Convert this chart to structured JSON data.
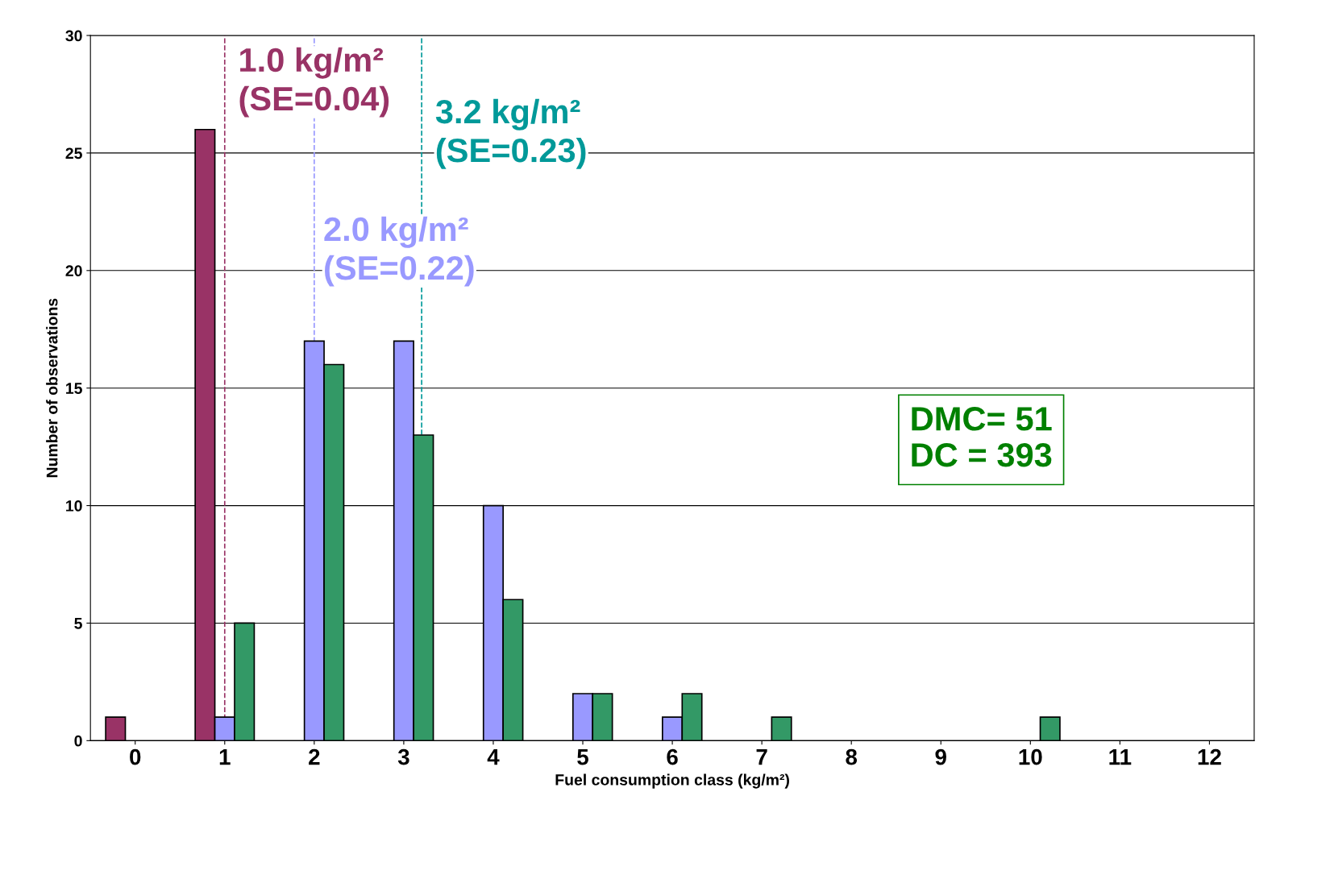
{
  "chart_data": {
    "type": "bar",
    "xlabel": "Fuel consumption class (kg/m²)",
    "ylabel": "Number of observations",
    "xlim": [
      -0.5,
      12.5
    ],
    "xticks": [
      0,
      1,
      2,
      3,
      4,
      5,
      6,
      7,
      8,
      9,
      10,
      11,
      12
    ],
    "series": [
      {
        "color": "#993366",
        "x": [
          0,
          1
        ],
        "values": [
          1,
          26
        ]
      },
      {
        "color": "#9999ff",
        "x": [
          1,
          2,
          3,
          4,
          5,
          6
        ],
        "values": [
          1,
          17,
          17,
          10,
          2,
          1
        ]
      },
      {
        "color": "#339966",
        "x": [
          1,
          2,
          3,
          4,
          5,
          6,
          7,
          10
        ],
        "values": [
          5,
          16,
          13,
          6,
          2,
          2,
          1,
          1
        ]
      }
    ],
    "ylim": [
      0,
      30
    ],
    "yticks": [
      0,
      5,
      10,
      15,
      20,
      25,
      30
    ],
    "grid": "y",
    "ref_lines": [
      {
        "axis": "x",
        "value": 1.0,
        "label": "1.0 kg/m²\n(SE=0.04)",
        "color": "#993366",
        "line_style": "dashed"
      },
      {
        "axis": "x",
        "value": 2.0,
        "label": "2.0 kg/m²\n(SE=0.22)",
        "color": "#9999ff",
        "line_style": "dashed"
      },
      {
        "axis": "x",
        "value": 3.2,
        "label": "3.2 kg/m²\n(SE=0.23)",
        "color": "#009999",
        "line_style": "dashed"
      }
    ],
    "annotations": [
      "DMC= 51\nDC = 393"
    ]
  }
}
